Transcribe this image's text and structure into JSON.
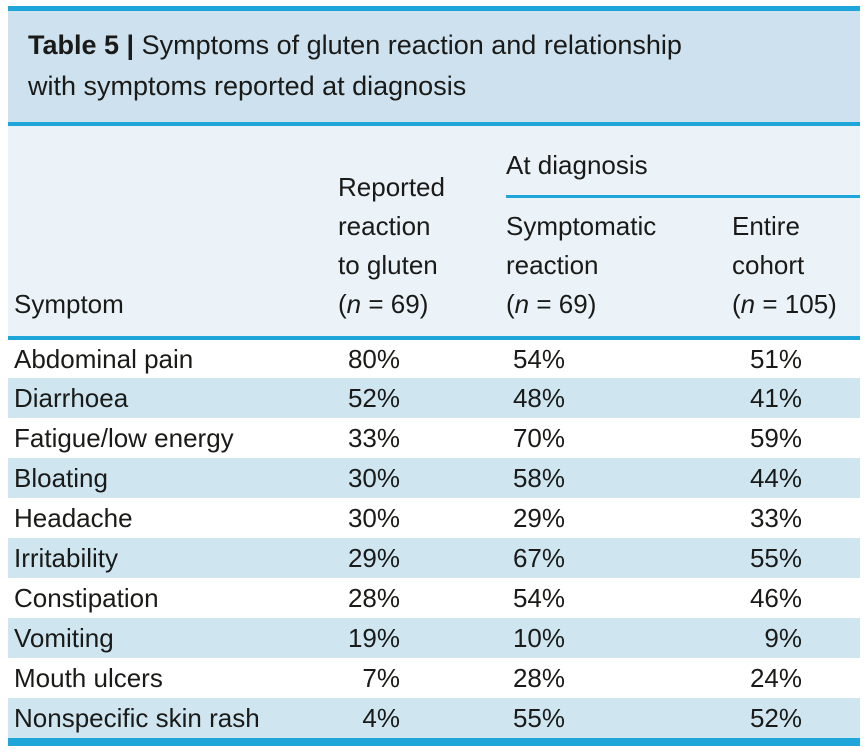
{
  "title": {
    "label": "Table 5 |",
    "line1": "Symptoms of gluten reaction and relationship",
    "line2": "with symptoms reported at diagnosis"
  },
  "header": {
    "symptom": "Symptom",
    "at_diagnosis": "At diagnosis",
    "reported": {
      "lines": [
        "Reported",
        "reaction",
        "to gluten"
      ],
      "n_open": "(",
      "n": "n",
      "n_rest": " = 69)"
    },
    "symptomatic": {
      "lines": [
        "Symptomatic",
        "reaction"
      ],
      "n_open": "(",
      "n": "n",
      "n_rest": " = 69)"
    },
    "entire": {
      "lines": [
        "Entire",
        "cohort"
      ],
      "n_open": "(",
      "n": "n",
      "n_rest": " = 105)"
    }
  },
  "rows": [
    {
      "symptom": "Abdominal pain",
      "reported": "80%",
      "symptomatic": "54%",
      "entire": "51%"
    },
    {
      "symptom": "Diarrhoea",
      "reported": "52%",
      "symptomatic": "48%",
      "entire": "41%"
    },
    {
      "symptom": "Fatigue/low energy",
      "reported": "33%",
      "symptomatic": "70%",
      "entire": "59%"
    },
    {
      "symptom": "Bloating",
      "reported": "30%",
      "symptomatic": "58%",
      "entire": "44%"
    },
    {
      "symptom": "Headache",
      "reported": "30%",
      "symptomatic": "29%",
      "entire": "33%"
    },
    {
      "symptom": "Irritability",
      "reported": "29%",
      "symptomatic": "67%",
      "entire": "55%"
    },
    {
      "symptom": "Constipation",
      "reported": "28%",
      "symptomatic": "54%",
      "entire": "46%"
    },
    {
      "symptom": "Vomiting",
      "reported": "19%",
      "symptomatic": "10%",
      "entire": "9%"
    },
    {
      "symptom": "Mouth ulcers",
      "reported": "7%",
      "symptomatic": "28%",
      "entire": "24%"
    },
    {
      "symptom": "Nonspecific skin rash",
      "reported": "4%",
      "symptomatic": "55%",
      "entire": "52%"
    }
  ],
  "colors": {
    "accent_cyan": "#1ea5d9",
    "title_band_blue": "#cde2ee",
    "header_band_blue": "#ebf3f8",
    "stripe_blue": "#cfe6f1",
    "text": "#1a1a18",
    "page_bg": "#ffffff"
  },
  "chart_data": {
    "type": "table",
    "title": "Table 5 | Symptoms of gluten reaction and relationship with symptoms reported at diagnosis",
    "columns": [
      "Symptom",
      "Reported reaction to gluten (n = 69)",
      "At diagnosis — Symptomatic reaction (n = 69)",
      "At diagnosis — Entire cohort (n = 105)"
    ],
    "rows": [
      [
        "Abdominal pain",
        "80%",
        "54%",
        "51%"
      ],
      [
        "Diarrhoea",
        "52%",
        "48%",
        "41%"
      ],
      [
        "Fatigue/low energy",
        "33%",
        "70%",
        "59%"
      ],
      [
        "Bloating",
        "30%",
        "58%",
        "44%"
      ],
      [
        "Headache",
        "30%",
        "29%",
        "33%"
      ],
      [
        "Irritability",
        "29%",
        "67%",
        "55%"
      ],
      [
        "Constipation",
        "28%",
        "54%",
        "46%"
      ],
      [
        "Vomiting",
        "19%",
        "10%",
        "9%"
      ],
      [
        "Mouth ulcers",
        "7%",
        "28%",
        "24%"
      ],
      [
        "Nonspecific skin rash",
        "4%",
        "55%",
        "52%"
      ]
    ]
  }
}
